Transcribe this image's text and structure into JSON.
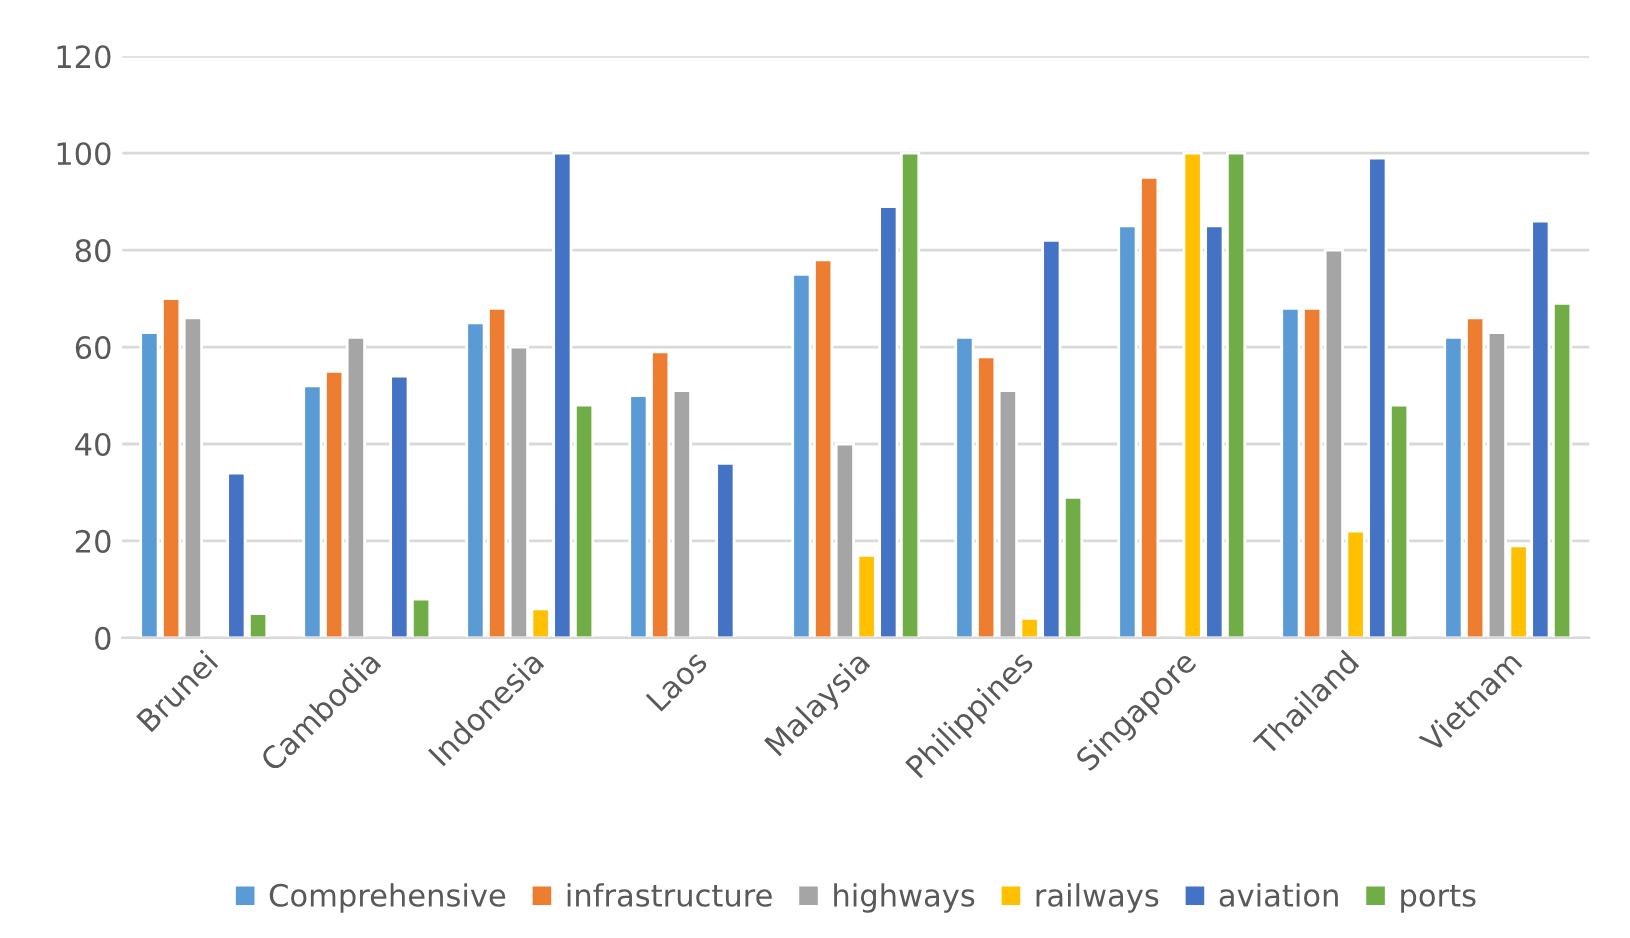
{
  "chart_data": {
    "type": "bar",
    "categories": [
      "Brunei",
      "Cambodia",
      "Indonesia",
      "Laos",
      "Malaysia",
      "Philippines",
      "Singapore",
      "Thailand",
      "Vietnam"
    ],
    "series": [
      {
        "name": "Comprehensive",
        "color": "#5b9bd5",
        "values": [
          63,
          52,
          65,
          50,
          75,
          62,
          85,
          68,
          62
        ]
      },
      {
        "name": "infrastructure",
        "color": "#ed7d31",
        "values": [
          70,
          55,
          68,
          59,
          78,
          58,
          95,
          68,
          66
        ]
      },
      {
        "name": "highways",
        "color": "#a5a5a5",
        "values": [
          66,
          62,
          60,
          51,
          40,
          51,
          null,
          80,
          63
        ]
      },
      {
        "name": "railways",
        "color": "#ffc000",
        "values": [
          null,
          null,
          6,
          null,
          17,
          4,
          100,
          22,
          19
        ]
      },
      {
        "name": "aviation",
        "color": "#4472c4",
        "values": [
          34,
          54,
          100,
          36,
          89,
          82,
          85,
          99,
          86
        ]
      },
      {
        "name": "ports",
        "color": "#70ad47",
        "values": [
          5,
          8,
          48,
          null,
          100,
          29,
          100,
          48,
          69
        ]
      }
    ],
    "ylim": [
      0,
      120
    ],
    "yticks": [
      0,
      20,
      40,
      60,
      80,
      100,
      120
    ],
    "grid": "y",
    "legend": "bottom"
  }
}
